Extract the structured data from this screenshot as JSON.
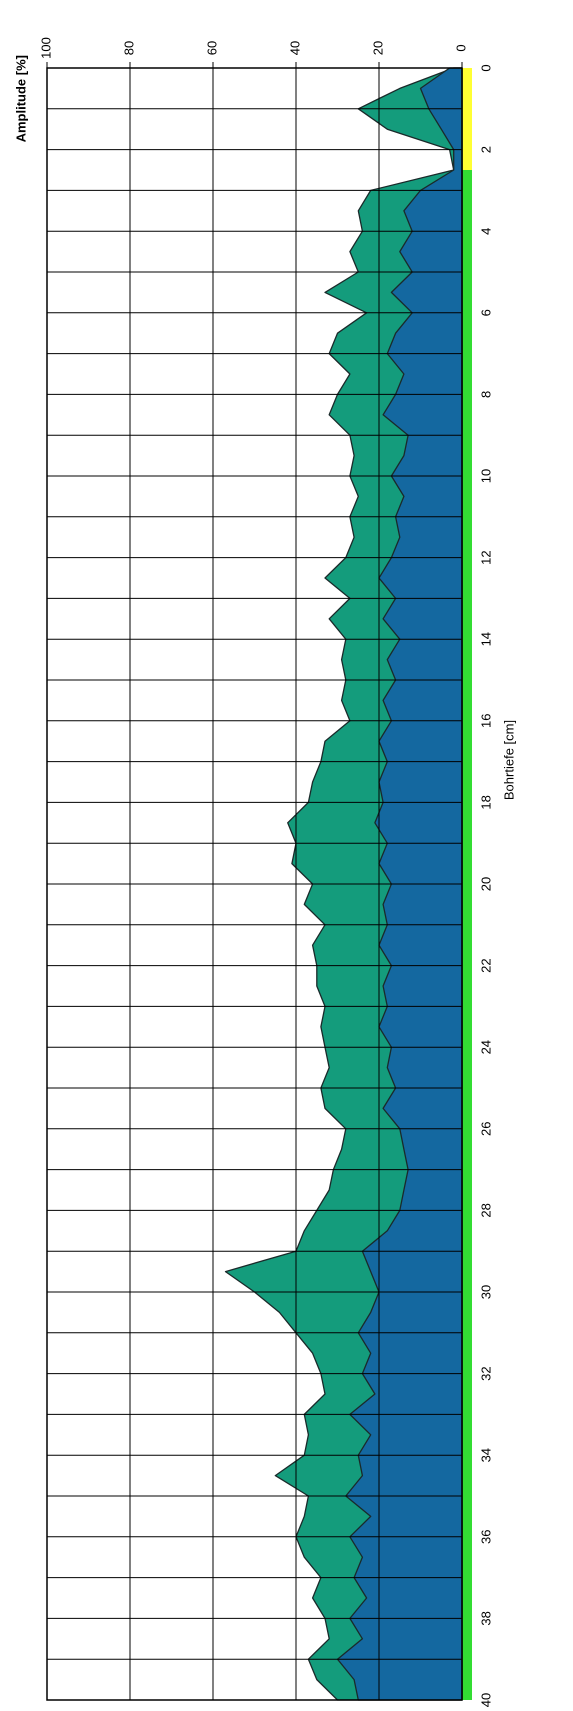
{
  "chart_data": {
    "type": "area",
    "x_label": "Bohrtiefe [cm]",
    "y_label": "Amplitude [%]",
    "orientation": "rotated",
    "x": [
      0,
      0.5,
      1,
      1.5,
      2,
      2.5,
      3,
      3.5,
      4,
      4.5,
      5,
      5.5,
      6,
      6.5,
      7,
      7.5,
      8,
      8.5,
      9,
      9.5,
      10,
      10.5,
      11,
      11.5,
      12,
      12.5,
      13,
      13.5,
      14,
      14.5,
      15,
      15.5,
      16,
      16.5,
      17,
      17.5,
      18,
      18.5,
      19,
      19.5,
      20,
      20.5,
      21,
      21.5,
      22,
      22.5,
      23,
      23.5,
      24,
      24.5,
      25,
      25.5,
      26,
      26.5,
      27,
      27.5,
      28,
      28.5,
      29,
      29.5,
      30,
      30.5,
      31,
      31.5,
      32,
      32.5,
      33,
      33.5,
      34,
      34.5,
      35,
      35.5,
      36,
      36.5,
      37,
      37.5,
      38,
      38.5,
      39,
      39.5,
      40
    ],
    "series": [
      {
        "color": "#149c7c",
        "values": [
          2,
          15,
          25,
          18,
          3,
          2,
          22,
          25,
          24,
          27,
          25,
          33,
          23,
          30,
          32,
          27,
          30,
          32,
          27,
          26,
          27,
          25,
          27,
          26,
          28,
          33,
          27,
          32,
          28,
          29,
          28,
          29,
          27,
          33,
          34,
          36,
          37,
          42,
          40,
          41,
          36,
          38,
          33,
          36,
          35,
          35,
          33,
          34,
          33,
          32,
          34,
          33,
          28,
          29,
          31,
          32,
          35,
          38,
          40,
          57,
          50,
          44,
          40,
          36,
          34,
          33,
          38,
          37,
          38,
          45,
          37,
          38,
          40,
          38,
          34,
          36,
          33,
          32,
          37,
          35,
          30
        ]
      },
      {
        "color": "#1468a0",
        "values": [
          3,
          10,
          8,
          5,
          2,
          2,
          10,
          14,
          12,
          15,
          12,
          17,
          12,
          16,
          18,
          14,
          16,
          19,
          13,
          14,
          17,
          14,
          16,
          15,
          17,
          20,
          16,
          19,
          15,
          18,
          16,
          19,
          17,
          20,
          18,
          20,
          19,
          21,
          18,
          20,
          17,
          19,
          18,
          20,
          17,
          19,
          18,
          20,
          17,
          18,
          16,
          19,
          15,
          14,
          13,
          14,
          15,
          18,
          24,
          22,
          20,
          22,
          25,
          22,
          24,
          21,
          27,
          22,
          25,
          24,
          28,
          22,
          27,
          24,
          26,
          23,
          27,
          24,
          30,
          26,
          25
        ]
      }
    ],
    "xlim": [
      0,
      40
    ],
    "xticks": [
      0,
      2,
      4,
      6,
      8,
      10,
      12,
      14,
      16,
      18,
      20,
      22,
      24,
      26,
      28,
      30,
      32,
      34,
      36,
      38,
      40
    ],
    "ylim": [
      0,
      100
    ],
    "yticks": [
      0,
      20,
      40,
      60,
      80,
      100
    ],
    "grid": true,
    "strip": [
      {
        "start": 0,
        "end": 2.5,
        "color": "#ffff33"
      },
      {
        "start": 2.5,
        "end": 40,
        "color": "#33dd33"
      }
    ]
  }
}
